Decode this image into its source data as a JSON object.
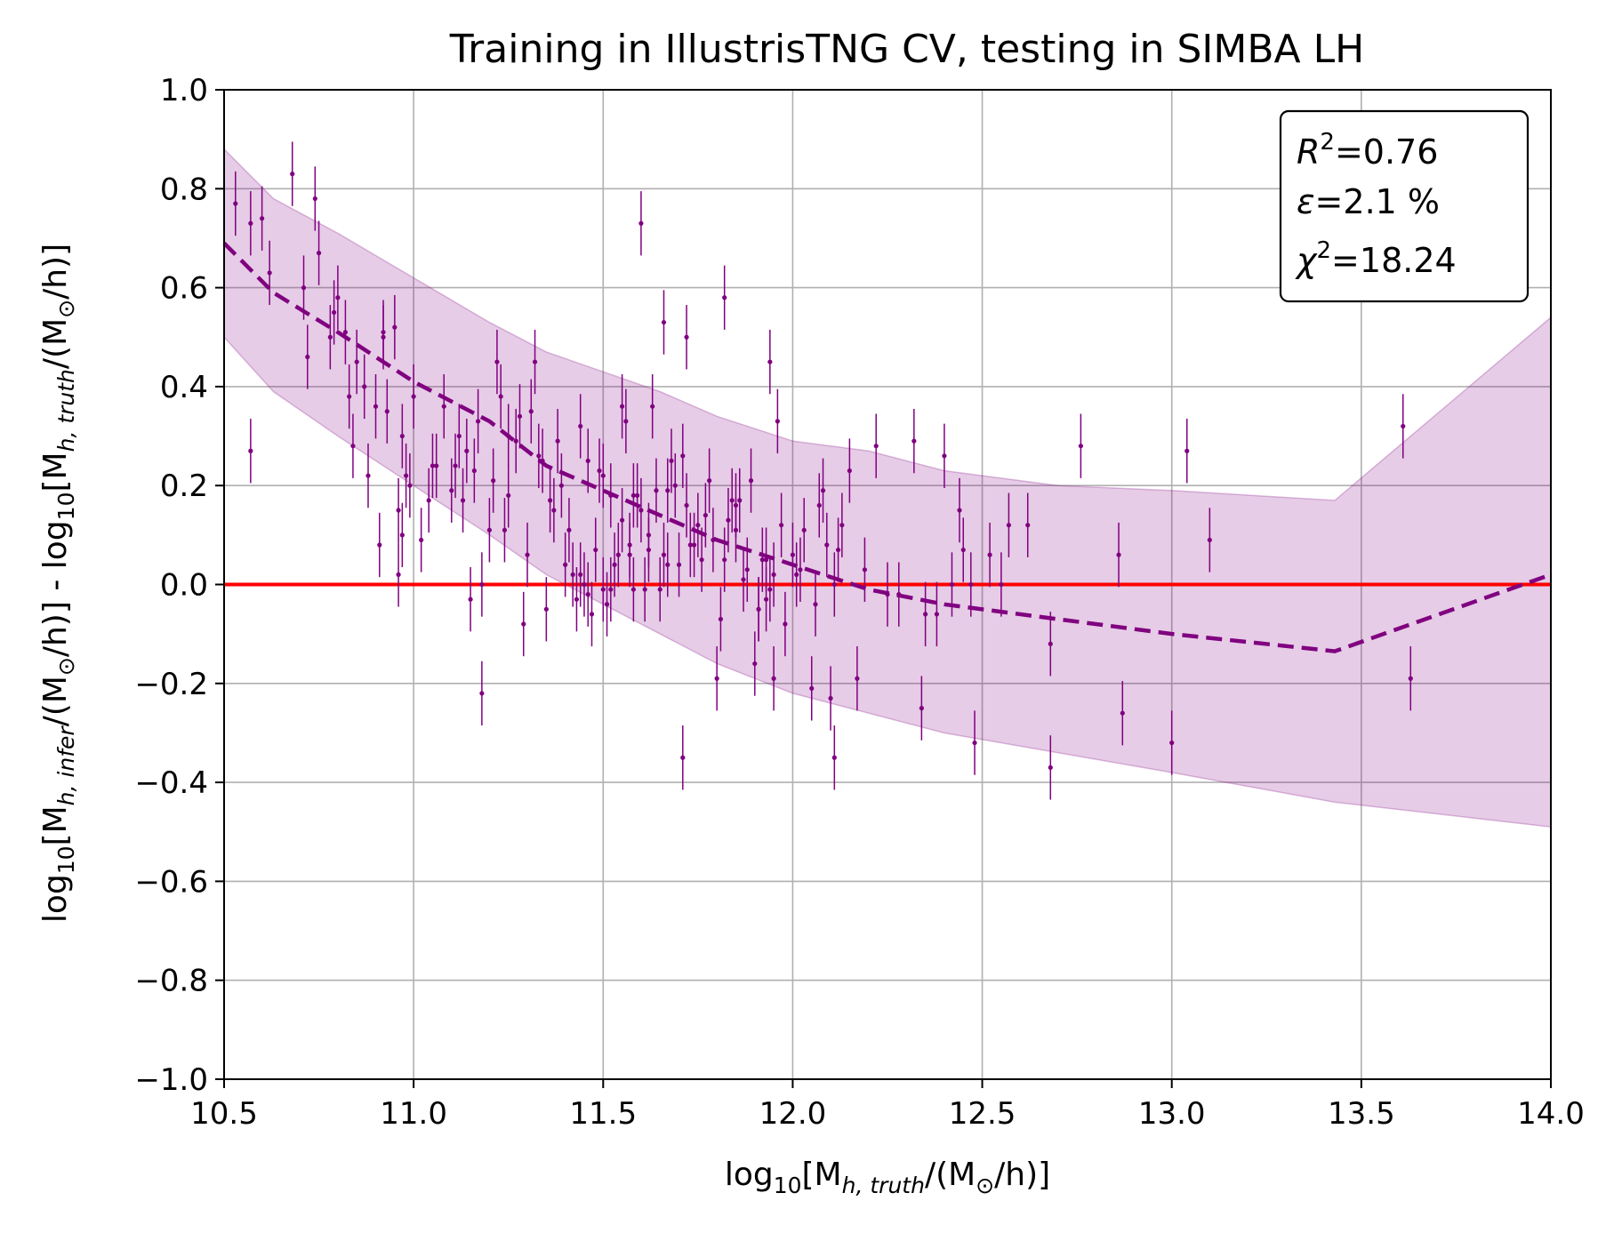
{
  "chart_data": {
    "type": "scatter",
    "title": "Training in IllustrisTNG CV, testing in SIMBA LH",
    "xlabel": {
      "pre": "log",
      "pre_sub": "10",
      "mid": "[M",
      "sub": "h, truth",
      "post": "/(M",
      "sun": "⊙",
      "end": "/h)]"
    },
    "ylabel": {
      "part1_pre": "log",
      "part1_pre_sub": "10",
      "part1_mid": "[M",
      "part1_sub": "h, infer",
      "part1_post": "/(M",
      "part1_sun": "⊙",
      "part1_end": "/h)]",
      "sep": " - ",
      "part2_pre": "log",
      "part2_pre_sub": "10",
      "part2_mid": "[M",
      "part2_sub": "h, truth",
      "part2_post": "/(M",
      "part2_sun": "⊙",
      "part2_end": "/h)]"
    },
    "xlim": [
      10.5,
      14.0
    ],
    "ylim": [
      -1.0,
      1.0
    ],
    "xticks": [
      10.5,
      11.0,
      11.5,
      12.0,
      12.5,
      13.0,
      13.5,
      14.0
    ],
    "xtick_labels": [
      "10.5",
      "11.0",
      "11.5",
      "12.0",
      "12.5",
      "13.0",
      "13.5",
      "14.0"
    ],
    "yticks": [
      1.0,
      0.8,
      0.6,
      0.4,
      0.2,
      0.0,
      -0.2,
      -0.4,
      -0.6,
      -0.8,
      -1.0
    ],
    "ytick_labels": [
      "1.0",
      "0.8",
      "0.6",
      "0.4",
      "0.2",
      "0.0",
      "−0.2",
      "−0.4",
      "−0.6",
      "−0.8",
      "−1.0"
    ],
    "grid": true,
    "stats": {
      "r2_sym": "R",
      "r2_sup": "2",
      "r2_val": "=0.76",
      "eps_sym": "ε",
      "eps_val": "=2.1 %",
      "chi2_sym": "χ",
      "chi2_sup": "2",
      "chi2_val": "=18.24",
      "placement": "top-right"
    },
    "zero_line": {
      "y": 0.0,
      "color": "#ff0000"
    },
    "mean_curve": {
      "color": "#800080",
      "x": [
        10.5,
        10.63,
        10.8,
        11.0,
        11.2,
        11.35,
        11.5,
        11.65,
        11.8,
        12.0,
        12.2,
        12.4,
        12.7,
        13.0,
        13.43,
        14.0
      ],
      "y": [
        0.69,
        0.59,
        0.51,
        0.41,
        0.33,
        0.24,
        0.19,
        0.14,
        0.09,
        0.04,
        -0.01,
        -0.04,
        -0.07,
        -0.1,
        -0.135,
        0.02
      ]
    },
    "band": {
      "color": "#800080",
      "x": [
        10.5,
        10.63,
        10.8,
        11.0,
        11.2,
        11.35,
        11.5,
        11.65,
        11.8,
        12.0,
        12.2,
        12.4,
        12.7,
        13.0,
        13.43,
        14.0
      ],
      "upper": [
        0.88,
        0.78,
        0.71,
        0.62,
        0.53,
        0.47,
        0.43,
        0.39,
        0.34,
        0.29,
        0.27,
        0.23,
        0.2,
        0.19,
        0.17,
        0.54
      ],
      "lower": [
        0.5,
        0.39,
        0.3,
        0.2,
        0.1,
        0.02,
        -0.04,
        -0.1,
        -0.16,
        -0.22,
        -0.26,
        -0.3,
        -0.34,
        -0.38,
        -0.44,
        -0.49
      ]
    },
    "points": {
      "color": "#800080",
      "x": [
        10.53,
        10.57,
        10.6,
        10.62,
        10.57,
        10.68,
        10.72,
        10.74,
        10.75,
        10.78,
        10.8,
        10.82,
        10.83,
        10.84,
        10.87,
        10.9,
        10.91,
        10.92,
        10.93,
        10.95,
        10.96,
        10.97,
        10.98,
        10.99,
        11.0,
        10.96,
        10.92,
        11.04,
        11.06,
        11.08,
        11.1,
        11.12,
        11.14,
        11.15,
        11.17,
        11.18,
        11.2,
        11.22,
        11.23,
        11.25,
        11.27,
        11.29,
        11.3,
        11.32,
        11.34,
        11.36,
        11.38,
        11.39,
        11.4,
        11.41,
        11.43,
        11.44,
        11.45,
        11.46,
        11.47,
        11.48,
        11.5,
        11.51,
        11.52,
        11.53,
        11.55,
        11.56,
        11.57,
        11.58,
        11.6,
        11.61,
        11.62,
        11.63,
        11.65,
        11.66,
        11.67,
        11.68,
        11.7,
        11.71,
        11.72,
        11.74,
        11.76,
        11.78,
        11.8,
        11.81,
        11.82,
        11.84,
        11.85,
        11.86,
        11.87,
        11.88,
        11.9,
        11.91,
        11.92,
        11.93,
        11.94,
        11.95,
        11.96,
        11.98,
        12.0,
        12.02,
        12.05,
        12.07,
        12.08,
        12.1,
        12.11,
        12.13,
        12.15,
        12.17,
        12.22,
        12.25,
        12.32,
        12.34,
        12.38,
        12.4,
        12.44,
        12.45,
        12.48,
        12.52,
        12.55,
        12.57,
        12.62,
        12.68,
        12.76,
        12.86,
        12.87,
        13.0,
        13.04,
        13.1,
        13.61,
        13.63,
        11.6,
        11.72,
        11.66,
        11.82,
        11.94,
        11.18,
        11.71,
        12.11,
        12.68,
        12.47,
        11.5,
        11.35,
        11.25,
        11.16,
        11.28,
        11.42,
        11.55,
        11.58,
        11.62,
        11.69,
        11.77,
        11.89,
        11.97,
        12.03,
        12.09,
        12.19,
        12.35,
        12.42,
        12.28,
        10.97,
        11.02,
        11.11,
        11.21,
        11.33,
        11.37,
        11.44,
        11.52,
        11.57,
        11.64,
        11.73,
        11.79,
        11.83,
        11.91,
        11.95,
        12.06,
        12.12,
        10.88,
        10.85,
        10.79,
        10.71,
        11.05,
        11.13,
        11.24,
        11.31,
        11.46,
        11.49,
        11.54,
        11.59,
        11.67,
        11.75,
        11.85,
        11.93,
        12.01
      ],
      "y": [
        0.77,
        0.73,
        0.74,
        0.63,
        0.27,
        0.83,
        0.46,
        0.78,
        0.67,
        0.5,
        0.58,
        0.51,
        0.38,
        0.28,
        0.4,
        0.36,
        0.08,
        0.5,
        0.35,
        0.52,
        0.15,
        0.3,
        0.22,
        0.2,
        0.38,
        0.02,
        0.51,
        0.17,
        0.24,
        0.36,
        0.19,
        0.3,
        0.27,
        -0.03,
        0.33,
        -0.22,
        0.11,
        0.45,
        0.38,
        0.18,
        0.29,
        -0.08,
        0.06,
        0.45,
        0.25,
        0.17,
        0.29,
        0.2,
        0.04,
        0.11,
        -0.03,
        0.32,
        0.0,
        0.25,
        -0.06,
        0.07,
        0.22,
        -0.04,
        -0.01,
        0.04,
        0.36,
        0.33,
        0.08,
        -0.01,
        0.15,
        -0.01,
        0.07,
        0.36,
        -0.01,
        0.06,
        0.19,
        0.25,
        0.04,
        0.26,
        0.16,
        0.08,
        0.05,
        0.21,
        -0.19,
        -0.07,
        0.05,
        0.17,
        0.16,
        0.17,
        0.01,
        0.03,
        -0.16,
        -0.05,
        0.05,
        0.05,
        -0.01,
        -0.19,
        0.33,
        -0.08,
        0.06,
        0.03,
        -0.21,
        0.16,
        0.19,
        -0.23,
        -0.0,
        0.12,
        0.23,
        -0.19,
        0.28,
        -0.02,
        0.29,
        -0.25,
        -0.06,
        0.26,
        0.15,
        0.07,
        -0.32,
        0.06,
        0.0,
        0.12,
        0.12,
        -0.37,
        0.28,
        0.06,
        -0.26,
        -0.32,
        0.27,
        0.09,
        0.32,
        -0.19,
        0.73,
        0.5,
        0.53,
        0.58,
        0.45,
        0.0,
        -0.35,
        -0.35,
        -0.12,
        0.0,
        -0.01,
        -0.05,
        0.3,
        0.23,
        0.34,
        0.02,
        0.13,
        0.18,
        0.1,
        0.2,
        0.14,
        0.21,
        0.12,
        0.11,
        0.08,
        0.03,
        -0.06,
        0.0,
        -0.02,
        0.1,
        0.09,
        0.24,
        0.21,
        0.26,
        0.15,
        0.02,
        0.18,
        0.06,
        0.19,
        0.08,
        0.09,
        0.13,
        -0.05,
        0.02,
        -0.04,
        0.07,
        0.22,
        0.45,
        0.55,
        0.6,
        0.24,
        0.17,
        0.11,
        0.35,
        -0.02,
        0.23,
        0.06,
        0.18,
        0.04,
        0.12,
        0.11,
        -0.03,
        0.02
      ],
      "yerr": 0.065
    }
  }
}
